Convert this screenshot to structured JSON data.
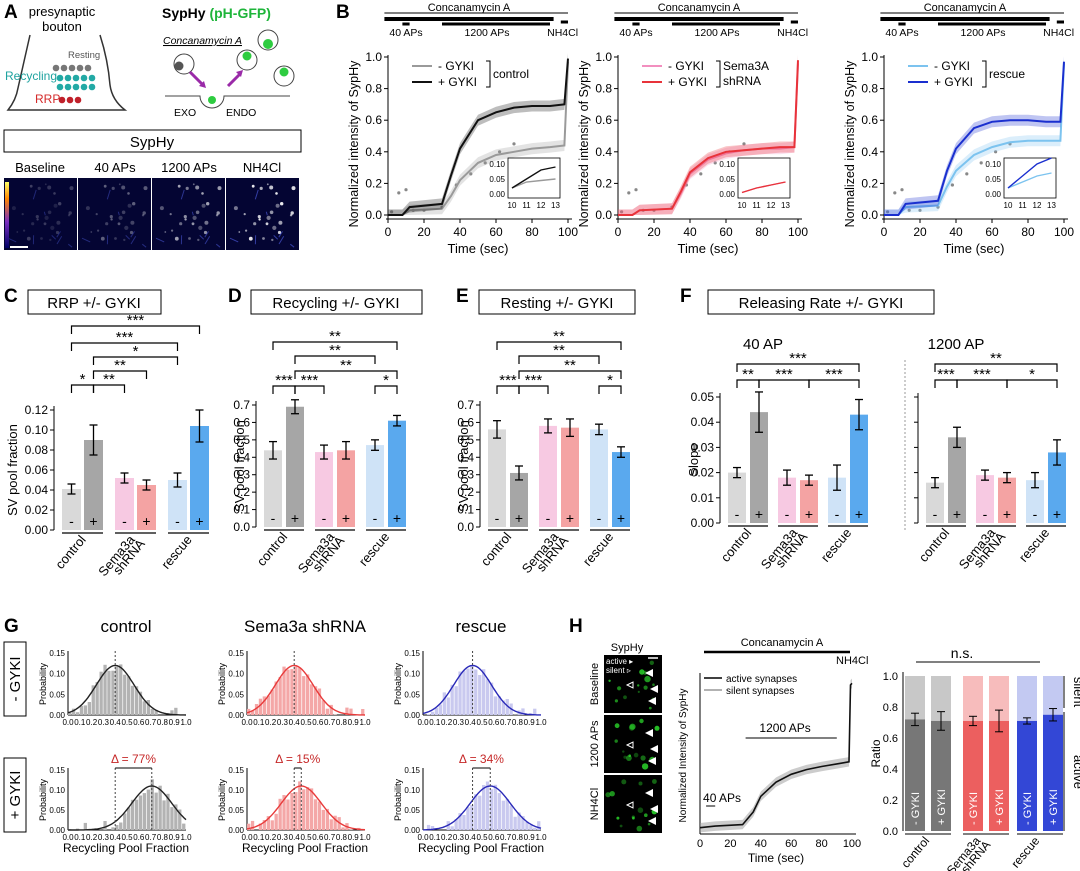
{
  "panels": {
    "A": {
      "letter": "A",
      "schematic": {
        "bouton_label_1": "presynaptic",
        "bouton_label_2": "bouton",
        "resting": "Resting",
        "recycling": "Recycling",
        "rrp": "RRP",
        "sensor_title_prefix": "SypHy",
        "sensor_title_suffix": "(pH-GFP)",
        "drug": "Concanamycin A",
        "exo": "EXO",
        "endo": "ENDO"
      },
      "imaging": {
        "header": "SypHy",
        "frames": [
          "Baseline",
          "40 APs",
          "1200 APs",
          "NH4Cl"
        ]
      }
    },
    "B": {
      "letter": "B",
      "bar_labels": {
        "drug": "Concanamycin A",
        "ap40": "40 APs",
        "ap1200": "1200 APs",
        "nh4": "NH4Cl"
      },
      "ylabel": "Normalized intensity of SypHy",
      "xlabel": "Time (sec)",
      "legends": [
        {
          "minus": "- GYKI",
          "plus": "+ GYKI",
          "group": "control"
        },
        {
          "minus": "- GYKI",
          "plus": "+ GYKI",
          "group_line1": "Sema3A",
          "group_line2": "shRNA"
        },
        {
          "minus": "- GYKI",
          "plus": "+ GYKI",
          "group": "rescue"
        }
      ]
    },
    "C": {
      "letter": "C",
      "title": "RRP +/- GYKI",
      "ylabel": "SV pool fraction",
      "sig": [
        "***",
        "***",
        "*",
        "**",
        "**",
        "*"
      ]
    },
    "D": {
      "letter": "D",
      "title": "Recycling +/- GYKI",
      "ylabel": "SV pool fraction",
      "sig": [
        "**",
        "**",
        "**",
        "*",
        "***",
        "***"
      ]
    },
    "E": {
      "letter": "E",
      "title": "Resting +/- GYKI",
      "ylabel": "SV pool fraction",
      "sig": [
        "**",
        "**",
        "**",
        "*",
        "***",
        "***"
      ]
    },
    "F": {
      "letter": "F",
      "title": "Releasing Rate +/- GYKI",
      "ylabel": "Slope",
      "sub40": "40 AP",
      "sub1200": "1200 AP",
      "sig40": [
        "***",
        "**",
        "***",
        "***"
      ],
      "sig1200": [
        "**",
        "***",
        "***",
        "*"
      ]
    },
    "G": {
      "letter": "G",
      "row_labels": [
        "- GYKI",
        "+ GYKI"
      ],
      "col_titles": [
        "control",
        "Sema3a shRNA",
        "rescue"
      ],
      "ylabel": "Probability",
      "xlabel": "Recycling Pool Fraction",
      "deltas": [
        "Δ = 77%",
        "Δ = 15%",
        "Δ = 34%"
      ]
    },
    "H": {
      "letter": "H",
      "image_header": "SypHy",
      "image_legend": [
        "active",
        "silent"
      ],
      "rows": [
        "Baseline",
        "1200 APs",
        "NH4Cl"
      ],
      "drug": "Concanamycin A",
      "nh4": "NH4Cl",
      "ap40": "40 APs",
      "ap1200": "1200 APs",
      "trace_legend": [
        "active synapses",
        "silent synapses"
      ],
      "ylabel": "Normalized Intensity of SypHy",
      "xlabel": "Time (sec)",
      "ratio_label": "Ratio",
      "ns": "n.s.",
      "silent": "silent",
      "active": "active",
      "bar_texts": [
        "- GYKI",
        "+ GYKI",
        "- GYKI",
        "+ GYKI",
        "- GYKI",
        "+ GYKI"
      ]
    }
  },
  "groups": [
    "control",
    "Sema3a shRNA",
    "rescue"
  ],
  "colors": {
    "control_minus": "#d9d9d9",
    "control_plus": "#a6a6a6",
    "sema_minus": "#f7c9e2",
    "sema_plus": "#f4a3a3",
    "rescue_minus": "#cfe3f7",
    "rescue_plus": "#5aa9ee",
    "trace_gray": "#9a9a9a",
    "trace_black": "#111111",
    "trace_pink": "#f28fbf",
    "trace_red": "#e8333a",
    "trace_lightblue": "#7cc3ef",
    "trace_blue": "#1a2fcf",
    "hist_gray": "#b3b3b3",
    "hist_red": "#f4a7a7",
    "hist_blue": "#c9c9ef"
  },
  "chart_data": [
    {
      "type": "line",
      "title": "B control",
      "xlabel": "Time (sec)",
      "ylabel": "Normalized intensity of SypHy",
      "xlim": [
        0,
        100
      ],
      "ylim": [
        0,
        1.0
      ],
      "series": [
        {
          "name": "- GYKI",
          "x": [
            0,
            8,
            12,
            30,
            35,
            40,
            50,
            60,
            70,
            80,
            90,
            98,
            100
          ],
          "y": [
            0,
            0,
            0.03,
            0.04,
            0.12,
            0.22,
            0.33,
            0.38,
            0.4,
            0.42,
            0.43,
            0.44,
            0.97
          ]
        },
        {
          "name": "+ GYKI",
          "x": [
            0,
            8,
            12,
            30,
            35,
            40,
            50,
            60,
            70,
            80,
            90,
            98,
            100
          ],
          "y": [
            0,
            0,
            0.05,
            0.07,
            0.25,
            0.42,
            0.6,
            0.65,
            0.68,
            0.69,
            0.69,
            0.7,
            0.99
          ]
        }
      ]
    },
    {
      "type": "line",
      "title": "B Sema3A shRNA",
      "xlabel": "Time (sec)",
      "ylabel": "Normalized intensity of SypHy",
      "xlim": [
        0,
        100
      ],
      "ylim": [
        0,
        1.0
      ],
      "series": [
        {
          "name": "- GYKI",
          "x": [
            0,
            8,
            12,
            30,
            35,
            40,
            50,
            60,
            70,
            80,
            90,
            98,
            100
          ],
          "y": [
            0,
            0,
            0.03,
            0.04,
            0.14,
            0.26,
            0.35,
            0.39,
            0.41,
            0.42,
            0.42,
            0.43,
            0.96
          ]
        },
        {
          "name": "+ GYKI",
          "x": [
            0,
            8,
            12,
            30,
            35,
            40,
            50,
            60,
            70,
            80,
            90,
            98,
            100
          ],
          "y": [
            0,
            0,
            0.03,
            0.04,
            0.15,
            0.27,
            0.36,
            0.4,
            0.41,
            0.42,
            0.43,
            0.43,
            0.98
          ]
        }
      ]
    },
    {
      "type": "line",
      "title": "B rescue",
      "xlabel": "Time (sec)",
      "ylabel": "Normalized intensity of SypHy",
      "xlim": [
        0,
        100
      ],
      "ylim": [
        0,
        1.0
      ],
      "series": [
        {
          "name": "- GYKI",
          "x": [
            0,
            8,
            12,
            30,
            35,
            40,
            50,
            60,
            70,
            80,
            90,
            98,
            100
          ],
          "y": [
            0,
            0,
            0.05,
            0.06,
            0.18,
            0.28,
            0.38,
            0.43,
            0.46,
            0.47,
            0.47,
            0.47,
            0.96
          ]
        },
        {
          "name": "+ GYKI",
          "x": [
            0,
            8,
            12,
            30,
            35,
            40,
            50,
            60,
            70,
            80,
            90,
            98,
            100
          ],
          "y": [
            0,
            0,
            0.07,
            0.09,
            0.28,
            0.42,
            0.55,
            0.59,
            0.6,
            0.6,
            0.59,
            0.59,
            0.97
          ]
        }
      ]
    },
    {
      "type": "bar",
      "title": "RRP +/- GYKI",
      "categories": [
        "control -",
        "control +",
        "Sema3a shRNA -",
        "Sema3a shRNA +",
        "rescue -",
        "rescue +"
      ],
      "values": [
        0.041,
        0.09,
        0.052,
        0.045,
        0.05,
        0.104
      ],
      "errors": [
        0.005,
        0.015,
        0.005,
        0.005,
        0.007,
        0.016
      ],
      "ylabel": "SV pool fraction",
      "ylim": [
        0,
        0.12
      ],
      "yticks": [
        0.0,
        0.02,
        0.04,
        0.06,
        0.08,
        0.1,
        0.12
      ]
    },
    {
      "type": "bar",
      "title": "Recycling +/- GYKI",
      "categories": [
        "control -",
        "control +",
        "Sema3a shRNA -",
        "Sema3a shRNA +",
        "rescue -",
        "rescue +"
      ],
      "values": [
        0.44,
        0.69,
        0.43,
        0.44,
        0.47,
        0.61
      ],
      "errors": [
        0.05,
        0.04,
        0.04,
        0.05,
        0.03,
        0.03
      ],
      "ylabel": "SV pool fraction",
      "ylim": [
        0,
        0.7
      ],
      "yticks": [
        0.0,
        0.1,
        0.2,
        0.3,
        0.4,
        0.5,
        0.6,
        0.7
      ]
    },
    {
      "type": "bar",
      "title": "Resting +/- GYKI",
      "categories": [
        "control -",
        "control +",
        "Sema3a shRNA -",
        "Sema3a shRNA +",
        "rescue -",
        "rescue +"
      ],
      "values": [
        0.56,
        0.31,
        0.58,
        0.57,
        0.56,
        0.43
      ],
      "errors": [
        0.05,
        0.04,
        0.04,
        0.05,
        0.03,
        0.03
      ],
      "ylabel": "SV pool fraction",
      "ylim": [
        0,
        0.7
      ],
      "yticks": [
        0.0,
        0.1,
        0.2,
        0.3,
        0.4,
        0.5,
        0.6,
        0.7
      ]
    },
    {
      "type": "bar",
      "title": "Releasing Rate 40 AP",
      "categories": [
        "control -",
        "control +",
        "Sema3a shRNA -",
        "Sema3a shRNA +",
        "rescue -",
        "rescue +"
      ],
      "values": [
        0.02,
        0.044,
        0.018,
        0.017,
        0.018,
        0.043
      ],
      "errors": [
        0.002,
        0.008,
        0.003,
        0.002,
        0.005,
        0.006
      ],
      "ylabel": "Slope",
      "ylim": [
        0,
        0.05
      ],
      "yticks": [
        0.0,
        0.01,
        0.02,
        0.03,
        0.04,
        0.05
      ]
    },
    {
      "type": "bar",
      "title": "Releasing Rate 1200 AP",
      "categories": [
        "control -",
        "control +",
        "Sema3a shRNA -",
        "Sema3a shRNA +",
        "rescue -",
        "rescue +"
      ],
      "values": [
        0.016,
        0.034,
        0.019,
        0.018,
        0.017,
        0.028
      ],
      "errors": [
        0.002,
        0.004,
        0.002,
        0.002,
        0.003,
        0.005
      ],
      "ylabel": "Slope",
      "ylim": [
        0,
        0.05
      ]
    },
    {
      "type": "bar",
      "title": "G histograms (mode of recycling pool fraction)",
      "categories": [
        "control -GYKI",
        "control +GYKI",
        "Sema3a -GYKI",
        "Sema3a +GYKI",
        "rescue -GYKI",
        "rescue +GYKI"
      ],
      "values": [
        0.4,
        0.71,
        0.4,
        0.46,
        0.42,
        0.57
      ],
      "xlabel": "Recycling Pool Fraction",
      "ylabel": "Probability",
      "xlim": [
        0,
        1.0
      ],
      "ylim": [
        0,
        0.15
      ]
    },
    {
      "type": "bar",
      "title": "H ratio",
      "categories": [
        "control - GYKI",
        "control + GYKI",
        "Sema3a shRNA - GYKI",
        "Sema3a shRNA + GYKI",
        "rescue - GYKI",
        "rescue + GYKI"
      ],
      "values": [
        0.72,
        0.71,
        0.71,
        0.71,
        0.71,
        0.75
      ],
      "errors": [
        0.04,
        0.06,
        0.03,
        0.07,
        0.02,
        0.04
      ],
      "ylabel": "Ratio",
      "ylim": [
        0,
        1.0
      ],
      "yticks": [
        0.0,
        0.2,
        0.4,
        0.6,
        0.8,
        1.0
      ]
    }
  ]
}
